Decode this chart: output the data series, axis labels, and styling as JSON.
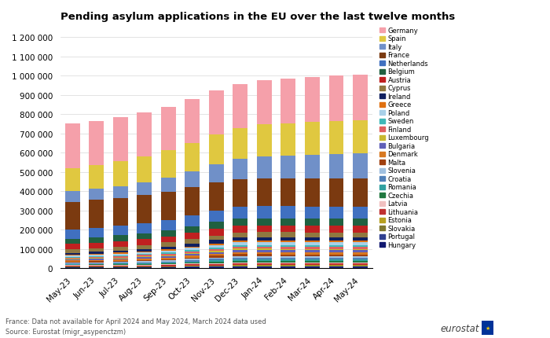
{
  "title": "Pending asylum applications in the EU over the last twelve months",
  "footnote": "France: Data not available for April 2024 and May 2024, March 2024 data used",
  "source": "Source: Eurostat (migr_asypenctzm)",
  "months": [
    "May-23",
    "Jun-23",
    "Jul-23",
    "Aug-23",
    "Sep-23",
    "Oct-23",
    "Nov-23",
    "Dec-23",
    "Jan-24",
    "Feb-24",
    "Mar-24",
    "Apr-24",
    "May-24"
  ],
  "countries": [
    "Hungary",
    "Portugal",
    "Slovakia",
    "Estonia",
    "Lithuania",
    "Latvia",
    "Czechia",
    "Romania",
    "Croatia",
    "Slovenia",
    "Malta",
    "Denmark",
    "Bulgaria",
    "Luxembourg",
    "Finland",
    "Sweden",
    "Poland",
    "Greece",
    "Ireland",
    "Cyprus",
    "Austria",
    "Belgium",
    "Netherlands",
    "France",
    "Italy",
    "Spain",
    "Germany"
  ],
  "colors": {
    "Germany": "#f5a0aa",
    "Spain": "#e0c840",
    "Italy": "#7090c8",
    "France": "#7b3a10",
    "Netherlands": "#4070c0",
    "Belgium": "#206040",
    "Austria": "#c02020",
    "Cyprus": "#907840",
    "Ireland": "#102060",
    "Greece": "#e07010",
    "Poland": "#a8d0e8",
    "Sweden": "#40b8b8",
    "Finland": "#e06060",
    "Luxembourg": "#c8b830",
    "Bulgaria": "#6060b8",
    "Denmark": "#d87820",
    "Malta": "#a04010",
    "Slovenia": "#a0c0e0",
    "Croatia": "#5080b8",
    "Romania": "#30a0a0",
    "Czechia": "#207840",
    "Latvia": "#f0c0c0",
    "Lithuania": "#c03030",
    "Estonia": "#b8a020",
    "Slovakia": "#807830",
    "Portugal": "#304090",
    "Hungary": "#101870"
  },
  "data": {
    "Hungary": [
      3000,
      3000,
      3000,
      3000,
      3000,
      3500,
      4000,
      4500,
      5000,
      5000,
      5000,
      5000,
      5000
    ],
    "Portugal": [
      2000,
      2000,
      2000,
      2000,
      2500,
      3000,
      3500,
      4000,
      4000,
      4000,
      4000,
      4000,
      4000
    ],
    "Slovakia": [
      2000,
      2000,
      2000,
      2000,
      2500,
      3000,
      3500,
      4000,
      4000,
      4000,
      4000,
      4000,
      4000
    ],
    "Estonia": [
      1500,
      1500,
      1500,
      1500,
      2000,
      2500,
      3000,
      3500,
      3500,
      3500,
      3500,
      3500,
      3500
    ],
    "Lithuania": [
      4000,
      4500,
      5000,
      5500,
      6000,
      7000,
      8000,
      9000,
      9000,
      8000,
      7000,
      7000,
      7000
    ],
    "Latvia": [
      2000,
      2000,
      2000,
      2500,
      3000,
      3500,
      4000,
      4000,
      4000,
      4000,
      4000,
      4000,
      4000
    ],
    "Czechia": [
      3000,
      3500,
      4000,
      4500,
      5000,
      6000,
      7000,
      8000,
      8000,
      8000,
      8000,
      8000,
      8000
    ],
    "Romania": [
      3000,
      3500,
      4000,
      4500,
      5000,
      6000,
      7000,
      8000,
      8000,
      8000,
      8000,
      8000,
      8000
    ],
    "Croatia": [
      3500,
      4000,
      4500,
      5000,
      5500,
      6500,
      7500,
      8500,
      8500,
      8500,
      8500,
      8500,
      8500
    ],
    "Slovenia": [
      3000,
      3500,
      4000,
      4500,
      5000,
      6000,
      7000,
      8000,
      8000,
      8000,
      8000,
      8000,
      8000
    ],
    "Malta": [
      5000,
      5500,
      6000,
      6500,
      7000,
      8000,
      9000,
      10000,
      10000,
      10000,
      10000,
      10000,
      10000
    ],
    "Denmark": [
      7000,
      7000,
      7000,
      7500,
      8000,
      9000,
      10000,
      11000,
      11000,
      11000,
      11000,
      11000,
      11000
    ],
    "Bulgaria": [
      5000,
      5500,
      6000,
      6500,
      7500,
      9000,
      10000,
      11000,
      11000,
      11000,
      11000,
      11000,
      11000
    ],
    "Luxembourg": [
      4000,
      4000,
      4000,
      4500,
      5000,
      5500,
      6000,
      7000,
      7000,
      7000,
      7000,
      7000,
      7000
    ],
    "Finland": [
      7000,
      7000,
      7000,
      7500,
      8000,
      9000,
      10000,
      11000,
      11000,
      11000,
      11000,
      11000,
      11000
    ],
    "Sweden": [
      4000,
      4500,
      5000,
      5500,
      6000,
      7000,
      7500,
      8000,
      8000,
      8000,
      8000,
      8000,
      8000
    ],
    "Poland": [
      6000,
      7000,
      8000,
      9000,
      10000,
      11000,
      13000,
      14000,
      15000,
      15000,
      15000,
      15000,
      15000
    ],
    "Greece": [
      5000,
      5000,
      5000,
      5500,
      6000,
      6500,
      7500,
      8000,
      8000,
      8000,
      8000,
      8000,
      8000
    ],
    "Ireland": [
      9000,
      10000,
      11000,
      12000,
      14000,
      16000,
      18000,
      18000,
      18000,
      18000,
      18000,
      18000,
      18000
    ],
    "Cyprus": [
      18000,
      19000,
      20000,
      21000,
      22000,
      23000,
      24000,
      25000,
      25000,
      26000,
      26000,
      26000,
      26000
    ],
    "Austria": [
      28000,
      28000,
      29000,
      30000,
      32000,
      34000,
      36000,
      37000,
      36000,
      35000,
      34000,
      34000,
      34000
    ],
    "Belgium": [
      28000,
      29000,
      30000,
      31000,
      32000,
      33000,
      35000,
      36000,
      37000,
      37000,
      37000,
      37000,
      37000
    ],
    "Netherlands": [
      47000,
      48000,
      50000,
      52000,
      54000,
      56000,
      58000,
      60000,
      62000,
      63000,
      64000,
      64000,
      64000
    ],
    "France": [
      145000,
      145000,
      145000,
      145000,
      145000,
      145000,
      145000,
      145000,
      145000,
      145000,
      145000,
      145000,
      145000
    ],
    "Italy": [
      55000,
      57000,
      60000,
      65000,
      72000,
      82000,
      95000,
      105000,
      115000,
      120000,
      125000,
      128000,
      130000
    ],
    "Spain": [
      120000,
      125000,
      130000,
      137000,
      143000,
      150000,
      155000,
      160000,
      165000,
      167000,
      170000,
      172000,
      174000
    ],
    "Germany": [
      230000,
      230000,
      228000,
      228000,
      228000,
      228000,
      228000,
      228000,
      230000,
      232000,
      234000,
      236000,
      238000
    ]
  },
  "ylim": [
    0,
    1250000
  ],
  "yticks": [
    0,
    100000,
    200000,
    300000,
    400000,
    500000,
    600000,
    700000,
    800000,
    900000,
    1000000,
    1100000,
    1200000
  ],
  "ytick_labels": [
    "0",
    "100 000",
    "200 000",
    "300 000",
    "400 000",
    "500 000",
    "600 000",
    "700 000",
    "800 000",
    "900 000",
    "1 000 000",
    "1 100 000",
    "1 200 000"
  ]
}
